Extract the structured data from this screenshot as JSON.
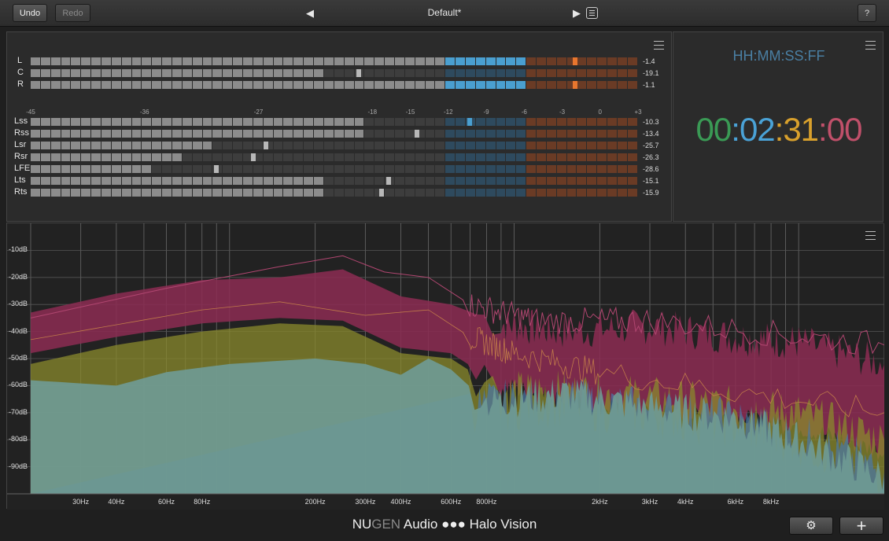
{
  "toolbar": {
    "undo_label": "Undo",
    "redo_label": "Redo",
    "preset_name": "Default*",
    "help_label": "?",
    "prev_icon": "triangle-left-icon",
    "next_icon": "triangle-right-icon",
    "list_icon": "preset-list-icon"
  },
  "meters": {
    "scale_labels": [
      "-45",
      "-36",
      "-27",
      "-18",
      "-15",
      "-12",
      "-9",
      "-6",
      "-3",
      "0",
      "+3"
    ],
    "db_min": -45,
    "db_max": 3,
    "main_channels": [
      {
        "label": "L",
        "value": "-1.4",
        "level_db": -6,
        "peak_db": -2
      },
      {
        "label": "C",
        "value": "-19.1",
        "level_db": -22,
        "peak_db": -19.1
      },
      {
        "label": "R",
        "value": "-1.1",
        "level_db": -6,
        "peak_db": -2
      }
    ],
    "surround_channels": [
      {
        "label": "Lss",
        "value": "-10.3",
        "level_db": -18.3,
        "peak_db": -10.3
      },
      {
        "label": "Rss",
        "value": "-13.4",
        "level_db": -18.3,
        "peak_db": -14.5
      },
      {
        "label": "Lsr",
        "value": "-25.7",
        "level_db": -31,
        "peak_db": -26.4
      },
      {
        "label": "Rsr",
        "value": "-26.3",
        "level_db": -33,
        "peak_db": -27.4
      },
      {
        "label": "LFE",
        "value": "-28.6",
        "level_db": -35.5,
        "peak_db": -30.3
      },
      {
        "label": "Lts",
        "value": "-15.1",
        "level_db": -22,
        "peak_db": -16.7
      },
      {
        "label": "Rts",
        "value": "-15.9",
        "level_db": -22,
        "peak_db": -17.3
      }
    ],
    "colors": {
      "gray": "#8c8c8c",
      "blue": "#4a9fd0",
      "orange": "#e8762e",
      "unlit_gray": "#3d3d3d",
      "unlit_blue": "#2e4a5e",
      "unlit_orange": "#6a3b25"
    }
  },
  "timecode": {
    "format_label": "HH:MM:SS:FF",
    "hours": "00",
    "minutes": "02",
    "seconds": "31",
    "frames": "00",
    "separator": ":",
    "colors": {
      "hours": "#3a9a55",
      "minutes": "#4aa2d6",
      "seconds": "#d8a02c",
      "frames": "#c0506a",
      "sep1": "#4aa2d6",
      "sep2": "#d8a02c",
      "sep3": "#c0506a"
    }
  },
  "spectrum": {
    "db_labels": [
      "-10dB",
      "-20dB",
      "-30dB",
      "-40dB",
      "-50dB",
      "-60dB",
      "-70dB",
      "-80dB",
      "-90dB"
    ],
    "hz_labels": [
      "30Hz",
      "40Hz",
      "60Hz",
      "80Hz",
      "200Hz",
      "300Hz",
      "400Hz",
      "600Hz",
      "800Hz",
      "2kHz",
      "3kHz",
      "4kHz",
      "6kHz",
      "8kHz"
    ],
    "hz_values": [
      30,
      40,
      60,
      80,
      200,
      300,
      400,
      600,
      800,
      2000,
      3000,
      4000,
      6000,
      8000
    ],
    "freq_range": [
      20,
      20000
    ],
    "db_range": [
      0,
      -100
    ],
    "colors": {
      "magenta": "#8c2b52",
      "yellow": "#8a8a2c",
      "teal": "#6f9a94",
      "blue": "#4a78a8"
    }
  },
  "footer": {
    "brand_nu": "NU",
    "brand_gen": "GEN",
    "brand_rest": " Audio ●●● Halo Vision",
    "settings_icon": "gear-icon",
    "add_icon": "plus-icon"
  }
}
